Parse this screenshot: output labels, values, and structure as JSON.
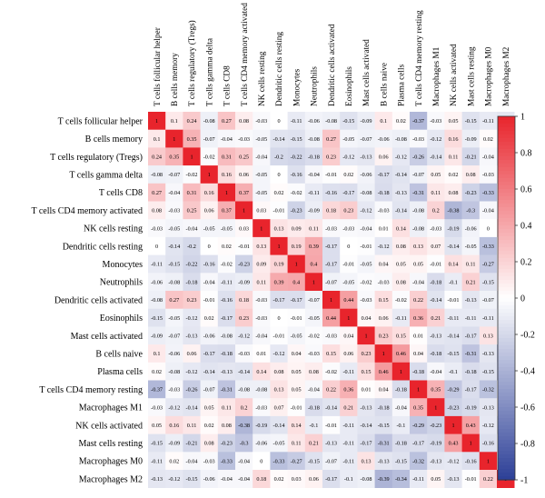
{
  "chart_data": {
    "type": "heatmap",
    "title": "",
    "xlabel": "",
    "ylabel": "",
    "labels": [
      "T cells follicular helper",
      "B cells memory",
      "T cells regulatory (Tregs)",
      "T cells gamma delta",
      "T cells CD8",
      "T cells CD4 memory activated",
      "NK cells resting",
      "Dendritic cells resting",
      "Monocytes",
      "Neutrophils",
      "Dendritic cells activated",
      "Eosinophils",
      "Mast cells activated",
      "B cells naive",
      "Plasma cells",
      "T cells CD4 memory resting",
      "Macrophages M1",
      "NK cells activated",
      "Mast cells resting",
      "Macrophages M0",
      "Macrophages M2"
    ],
    "matrix": [
      [
        1,
        0.1,
        0.24,
        -0.08,
        0.27,
        0.08,
        -0.03,
        0,
        -0.11,
        -0.06,
        -0.08,
        -0.15,
        -0.09,
        0.1,
        0.02,
        -0.37,
        -0.03,
        0.05,
        -0.15,
        -0.11,
        -0.13
      ],
      [
        0.1,
        1,
        0.35,
        -0.07,
        -0.04,
        -0.03,
        -0.05,
        -0.14,
        -0.15,
        -0.08,
        0.27,
        -0.05,
        -0.07,
        -0.06,
        -0.08,
        -0.03,
        -0.12,
        0.16,
        -0.09,
        0.02,
        -0.12
      ],
      [
        0.24,
        0.35,
        1,
        -0.02,
        0.31,
        0.25,
        -0.04,
        -0.2,
        -0.22,
        -0.18,
        0.23,
        -0.12,
        -0.13,
        0.06,
        -0.12,
        -0.26,
        -0.14,
        0.11,
        -0.21,
        -0.04,
        -0.15
      ],
      [
        -0.08,
        -0.07,
        -0.02,
        1,
        0.16,
        0.06,
        -0.05,
        0,
        -0.16,
        -0.04,
        -0.01,
        0.02,
        -0.06,
        -0.17,
        -0.14,
        -0.07,
        0.05,
        0.02,
        0.08,
        -0.03,
        -0.06
      ],
      [
        0.27,
        -0.04,
        0.31,
        0.16,
        1,
        0.37,
        -0.05,
        0.02,
        -0.02,
        -0.11,
        -0.16,
        -0.17,
        -0.08,
        -0.18,
        -0.13,
        -0.31,
        0.11,
        0.08,
        -0.23,
        -0.33,
        -0.04
      ],
      [
        0.08,
        -0.03,
        0.25,
        0.06,
        0.37,
        1,
        0.03,
        -0.01,
        -0.23,
        -0.09,
        0.18,
        0.23,
        -0.12,
        -0.03,
        -0.14,
        -0.08,
        0.2,
        -0.38,
        -0.3,
        -0.04,
        -0.04
      ],
      [
        -0.03,
        -0.05,
        -0.04,
        -0.05,
        -0.05,
        0.03,
        1,
        0.13,
        0.09,
        0.11,
        -0.03,
        -0.03,
        -0.04,
        0.01,
        0.14,
        -0.08,
        -0.03,
        -0.19,
        -0.06,
        0,
        0.18
      ],
      [
        0,
        -0.14,
        -0.2,
        0,
        0.02,
        -0.01,
        0.13,
        1,
        0.19,
        0.39,
        -0.17,
        0,
        -0.01,
        -0.12,
        0.08,
        0.13,
        0.07,
        -0.14,
        -0.05,
        -0.33,
        0.02
      ],
      [
        -0.11,
        -0.15,
        -0.22,
        -0.16,
        -0.02,
        -0.23,
        0.09,
        0.19,
        1,
        0.4,
        -0.17,
        -0.01,
        -0.05,
        0.04,
        0.05,
        0.05,
        -0.01,
        0.14,
        0.11,
        -0.27,
        0.03
      ],
      [
        -0.06,
        -0.08,
        -0.18,
        -0.04,
        -0.11,
        -0.09,
        0.11,
        0.39,
        0.4,
        1,
        -0.07,
        -0.05,
        -0.02,
        -0.03,
        0.08,
        -0.04,
        -0.18,
        -0.1,
        0.21,
        -0.15,
        0.06
      ],
      [
        -0.08,
        0.27,
        0.23,
        -0.01,
        -0.16,
        0.18,
        -0.03,
        -0.17,
        -0.17,
        -0.07,
        1,
        0.44,
        -0.03,
        0.15,
        -0.02,
        0.22,
        -0.14,
        -0.01,
        -0.13,
        -0.07,
        -0.17
      ],
      [
        -0.15,
        -0.05,
        -0.12,
        0.02,
        -0.17,
        0.23,
        -0.03,
        0,
        -0.01,
        -0.05,
        0.44,
        1,
        0.04,
        0.06,
        -0.11,
        0.36,
        0.21,
        -0.11,
        -0.11,
        -0.11,
        -0.1
      ],
      [
        -0.09,
        -0.07,
        -0.13,
        -0.06,
        -0.08,
        -0.12,
        -0.04,
        -0.01,
        -0.05,
        -0.02,
        -0.03,
        0.04,
        1,
        0.23,
        0.15,
        0.01,
        -0.13,
        -0.14,
        -0.17,
        0.13,
        -0.08
      ],
      [
        0.1,
        -0.06,
        0.06,
        -0.17,
        -0.18,
        -0.03,
        0.01,
        -0.12,
        0.04,
        -0.03,
        0.15,
        0.06,
        0.23,
        1,
        0.46,
        0.04,
        -0.18,
        -0.15,
        -0.31,
        -0.13,
        -0.39
      ],
      [
        0.02,
        -0.08,
        -0.12,
        -0.14,
        -0.13,
        -0.14,
        0.14,
        0.08,
        0.05,
        0.08,
        -0.02,
        -0.11,
        0.15,
        0.46,
        1,
        -0.18,
        -0.04,
        -0.1,
        -0.18,
        -0.15,
        -0.34
      ],
      [
        -0.37,
        -0.03,
        -0.26,
        -0.07,
        -0.31,
        -0.08,
        -0.08,
        0.13,
        0.05,
        -0.04,
        0.22,
        0.36,
        0.01,
        0.04,
        -0.18,
        1,
        0.35,
        -0.29,
        -0.17,
        -0.32,
        -0.11
      ],
      [
        -0.03,
        -0.12,
        -0.14,
        0.05,
        0.11,
        0.2,
        -0.03,
        0.07,
        -0.01,
        -0.18,
        -0.14,
        0.21,
        -0.13,
        -0.18,
        -0.04,
        0.35,
        1,
        -0.23,
        -0.19,
        -0.13,
        0.05
      ],
      [
        0.05,
        0.16,
        0.11,
        0.02,
        0.08,
        -0.38,
        -0.19,
        -0.14,
        0.14,
        -0.1,
        -0.01,
        -0.11,
        -0.14,
        -0.15,
        -0.1,
        -0.29,
        -0.23,
        1,
        0.43,
        -0.12,
        -0.13
      ],
      [
        -0.15,
        -0.09,
        -0.21,
        0.08,
        -0.23,
        -0.3,
        -0.06,
        -0.05,
        0.11,
        0.21,
        -0.13,
        -0.11,
        -0.17,
        -0.31,
        -0.18,
        -0.17,
        -0.19,
        0.43,
        1,
        -0.16,
        -0.01
      ],
      [
        -0.11,
        0.02,
        -0.04,
        -0.03,
        -0.33,
        -0.04,
        0,
        -0.33,
        -0.27,
        -0.15,
        -0.07,
        -0.11,
        0.13,
        -0.13,
        -0.15,
        -0.32,
        -0.13,
        -0.12,
        -0.16,
        1,
        0.22
      ],
      [
        -0.13,
        -0.12,
        -0.15,
        -0.06,
        -0.04,
        -0.04,
        0.18,
        0.02,
        0.03,
        0.06,
        -0.17,
        -0.1,
        -0.08,
        -0.39,
        -0.34,
        -0.11,
        0.05,
        -0.13,
        -0.01,
        0.22,
        1
      ]
    ],
    "color_scale": {
      "min": -1,
      "max": 1,
      "ticks": [
        1,
        0.8,
        0.6,
        0.4,
        0.2,
        0,
        -0.2,
        -0.4,
        -0.6,
        -0.8,
        -1
      ],
      "tick_labels": [
        "1",
        "0.8",
        "0.6",
        "0.4",
        "0.2",
        "0",
        "-0.2",
        "-0.4",
        "-0.6",
        "-0.8",
        "-1"
      ],
      "low_color": "#2c3f97",
      "mid_color": "#ffffff",
      "high_color": "#e8242c"
    },
    "legend": "right",
    "grid": false
  }
}
